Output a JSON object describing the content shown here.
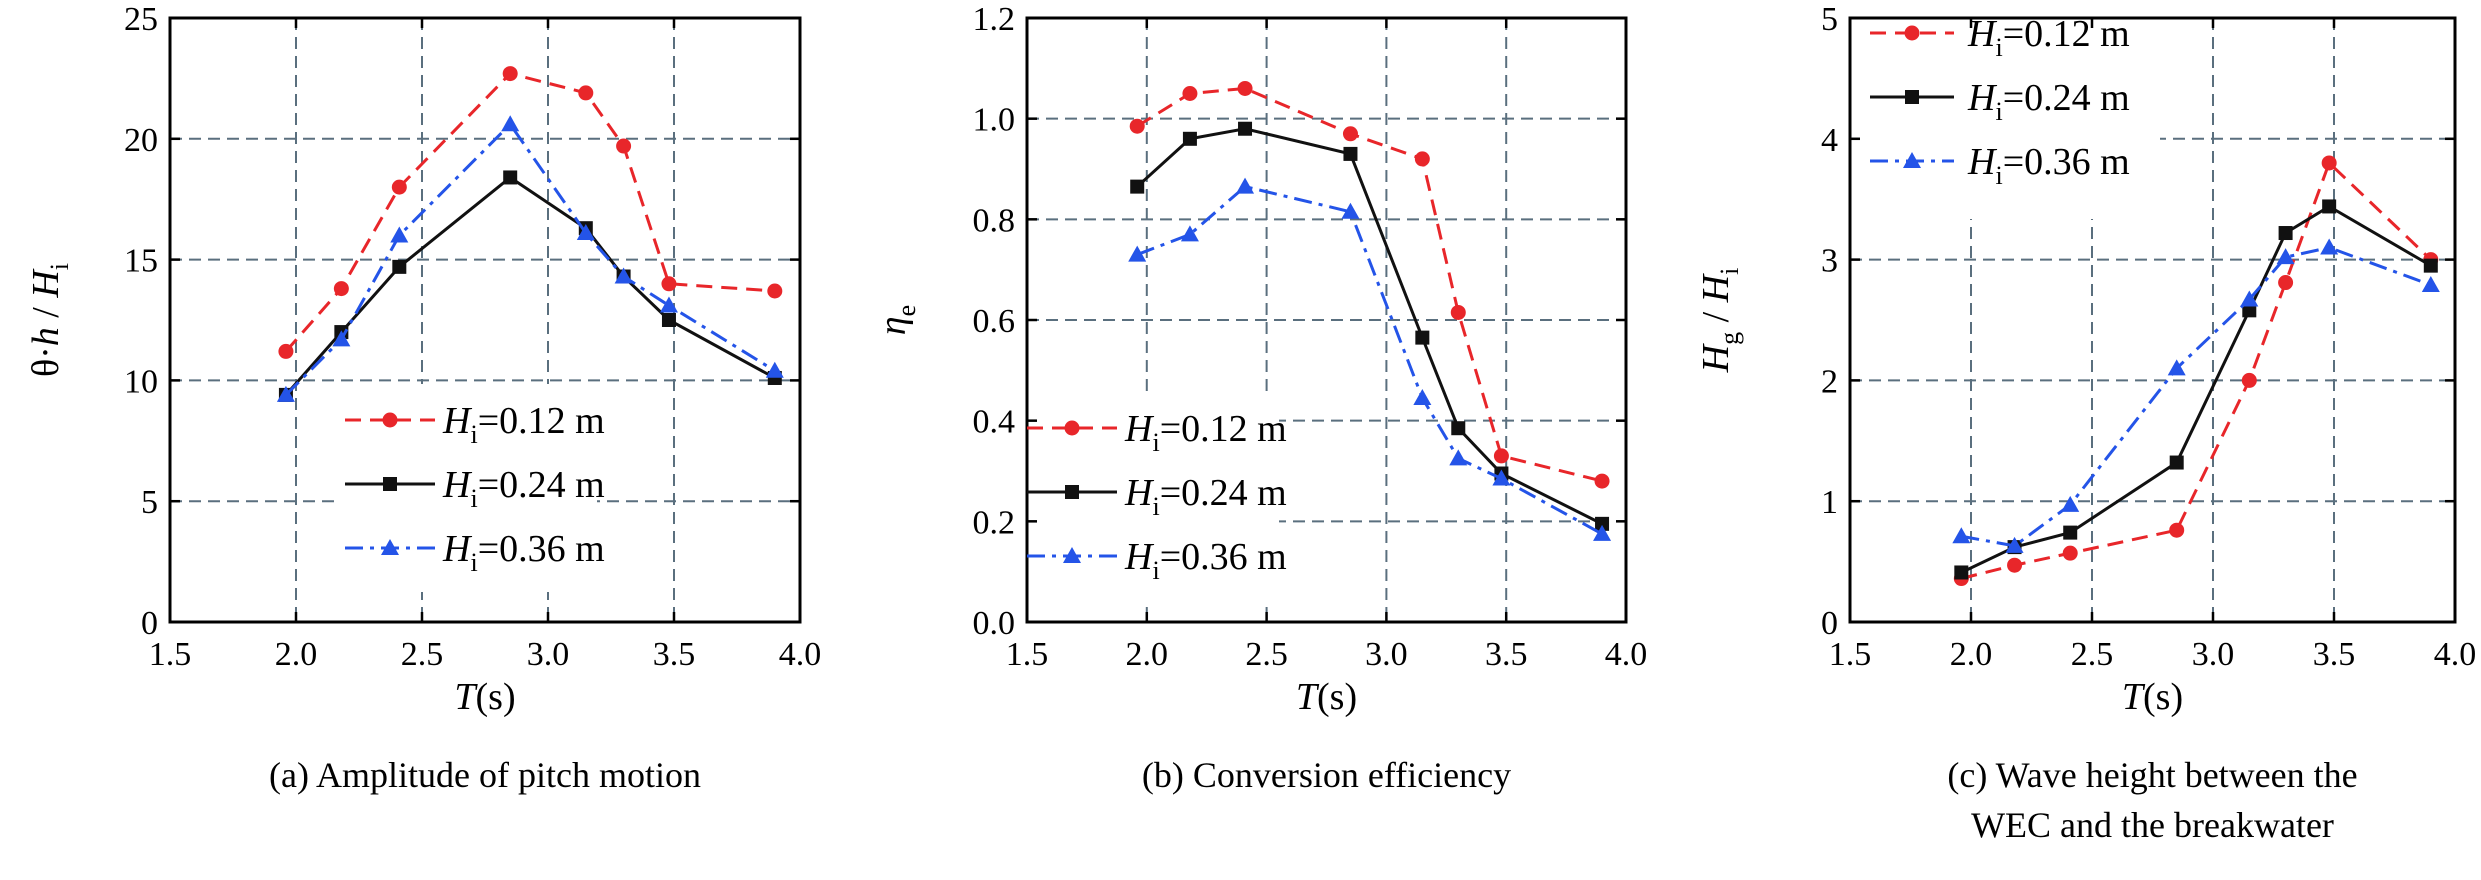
{
  "chart_data": [
    {
      "type": "line",
      "caption": "(a) Amplitude of pitch motion",
      "xlabel": "T",
      "xlabel_unit": "(s)",
      "ylabel": "θ·h / Hi",
      "ylabel_parts": [
        "θ·",
        "h",
        " / ",
        "H",
        "i"
      ],
      "xlim": [
        1.5,
        4.0
      ],
      "ylim": [
        0,
        25
      ],
      "xticks": [
        "1.5",
        "2.0",
        "2.5",
        "3.0",
        "3.5",
        "4.0"
      ],
      "yticks": [
        "0",
        "5",
        "10",
        "15",
        "20",
        "25"
      ],
      "grid": true,
      "legend_position": "lower-center",
      "series": [
        {
          "name": "Hi=0.12 m",
          "name_parts": [
            "H",
            "i",
            "=0.12 m"
          ],
          "color": "#e8262a",
          "dash": "dashed",
          "marker": "circle",
          "x": [
            1.96,
            2.18,
            2.41,
            2.85,
            3.15,
            3.3,
            3.48,
            3.9
          ],
          "y": [
            11.2,
            13.8,
            18.0,
            22.7,
            21.9,
            19.7,
            14.0,
            13.7
          ]
        },
        {
          "name": "Hi=0.24 m",
          "name_parts": [
            "H",
            "i",
            "=0.24 m"
          ],
          "color": "#111111",
          "dash": "solid",
          "marker": "square",
          "x": [
            1.96,
            2.18,
            2.41,
            2.85,
            3.15,
            3.3,
            3.48,
            3.9
          ],
          "y": [
            9.4,
            12.0,
            14.7,
            18.4,
            16.3,
            14.3,
            12.5,
            10.1
          ]
        },
        {
          "name": "Hi=0.36 m",
          "name_parts": [
            "H",
            "i",
            "=0.36 m"
          ],
          "color": "#2454e8",
          "dash": "dashdot",
          "marker": "triangle",
          "x": [
            1.96,
            2.18,
            2.41,
            2.85,
            3.15,
            3.3,
            3.48,
            3.9
          ],
          "y": [
            9.4,
            11.7,
            16.0,
            20.6,
            16.1,
            14.3,
            13.1,
            10.4
          ]
        }
      ]
    },
    {
      "type": "line",
      "caption": "(b) Conversion efficiency",
      "xlabel": "T",
      "xlabel_unit": "(s)",
      "ylabel": "ηe",
      "ylabel_parts": [
        "η",
        "e"
      ],
      "xlim": [
        1.5,
        4.0
      ],
      "ylim": [
        0,
        1.2
      ],
      "xticks": [
        "1.5",
        "2.0",
        "2.5",
        "3.0",
        "3.5",
        "4.0"
      ],
      "yticks": [
        "0.0",
        "0.2",
        "0.4",
        "0.6",
        "0.8",
        "1.0",
        "1.2"
      ],
      "grid": true,
      "legend_position": "lower-left",
      "series": [
        {
          "name": "Hi=0.12 m",
          "name_parts": [
            "H",
            "i",
            "=0.12 m"
          ],
          "color": "#e8262a",
          "dash": "dashed",
          "marker": "circle",
          "x": [
            1.96,
            2.18,
            2.41,
            2.85,
            3.15,
            3.3,
            3.48,
            3.9
          ],
          "y": [
            0.985,
            1.05,
            1.06,
            0.97,
            0.92,
            0.615,
            0.33,
            0.28
          ]
        },
        {
          "name": "Hi=0.24 m",
          "name_parts": [
            "H",
            "i",
            "=0.24 m"
          ],
          "color": "#111111",
          "dash": "solid",
          "marker": "square",
          "x": [
            1.96,
            2.18,
            2.41,
            2.85,
            3.15,
            3.3,
            3.48,
            3.9
          ],
          "y": [
            0.865,
            0.96,
            0.98,
            0.93,
            0.565,
            0.385,
            0.295,
            0.195
          ]
        },
        {
          "name": "Hi=0.36 m",
          "name_parts": [
            "H",
            "i",
            "=0.36 m"
          ],
          "color": "#2454e8",
          "dash": "dashdot",
          "marker": "triangle",
          "x": [
            1.96,
            2.18,
            2.41,
            2.85,
            3.15,
            3.3,
            3.48,
            3.9
          ],
          "y": [
            0.73,
            0.77,
            0.865,
            0.815,
            0.445,
            0.325,
            0.285,
            0.175
          ]
        }
      ]
    },
    {
      "type": "line",
      "caption": "(c) Wave height between the WEC and the breakwater",
      "caption_lines": [
        "(c) Wave height between the",
        "WEC and the breakwater"
      ],
      "xlabel": "T",
      "xlabel_unit": "(s)",
      "ylabel": "Hg / Hi",
      "ylabel_parts": [
        "H",
        "g",
        " / ",
        "H",
        "i"
      ],
      "xlim": [
        1.5,
        4.0
      ],
      "ylim": [
        0,
        5
      ],
      "xticks": [
        "1.5",
        "2.0",
        "2.5",
        "3.0",
        "3.5",
        "4.0"
      ],
      "yticks": [
        "0",
        "1",
        "2",
        "3",
        "4",
        "5"
      ],
      "grid": true,
      "legend_position": "top-left",
      "series": [
        {
          "name": "Hi=0.12 m",
          "name_parts": [
            "H",
            "i",
            "=0.12 m"
          ],
          "color": "#e8262a",
          "dash": "dashed",
          "marker": "circle",
          "x": [
            1.96,
            2.18,
            2.41,
            2.85,
            3.15,
            3.3,
            3.48,
            3.9
          ],
          "y": [
            0.36,
            0.47,
            0.57,
            0.76,
            2.0,
            2.81,
            3.8,
            3.0
          ]
        },
        {
          "name": "Hi=0.24 m",
          "name_parts": [
            "H",
            "i",
            "=0.24 m"
          ],
          "color": "#111111",
          "dash": "solid",
          "marker": "square",
          "x": [
            1.96,
            2.18,
            2.41,
            2.85,
            3.15,
            3.3,
            3.48,
            3.9
          ],
          "y": [
            0.41,
            0.62,
            0.74,
            1.32,
            2.58,
            3.22,
            3.44,
            2.95
          ]
        },
        {
          "name": "Hi=0.36 m",
          "name_parts": [
            "H",
            "i",
            "=0.36 m"
          ],
          "color": "#2454e8",
          "dash": "dashdot",
          "marker": "triangle",
          "x": [
            1.96,
            2.18,
            2.41,
            2.85,
            3.15,
            3.3,
            3.48,
            3.9
          ],
          "y": [
            0.71,
            0.63,
            0.97,
            2.1,
            2.67,
            3.02,
            3.1,
            2.79
          ]
        }
      ]
    }
  ]
}
